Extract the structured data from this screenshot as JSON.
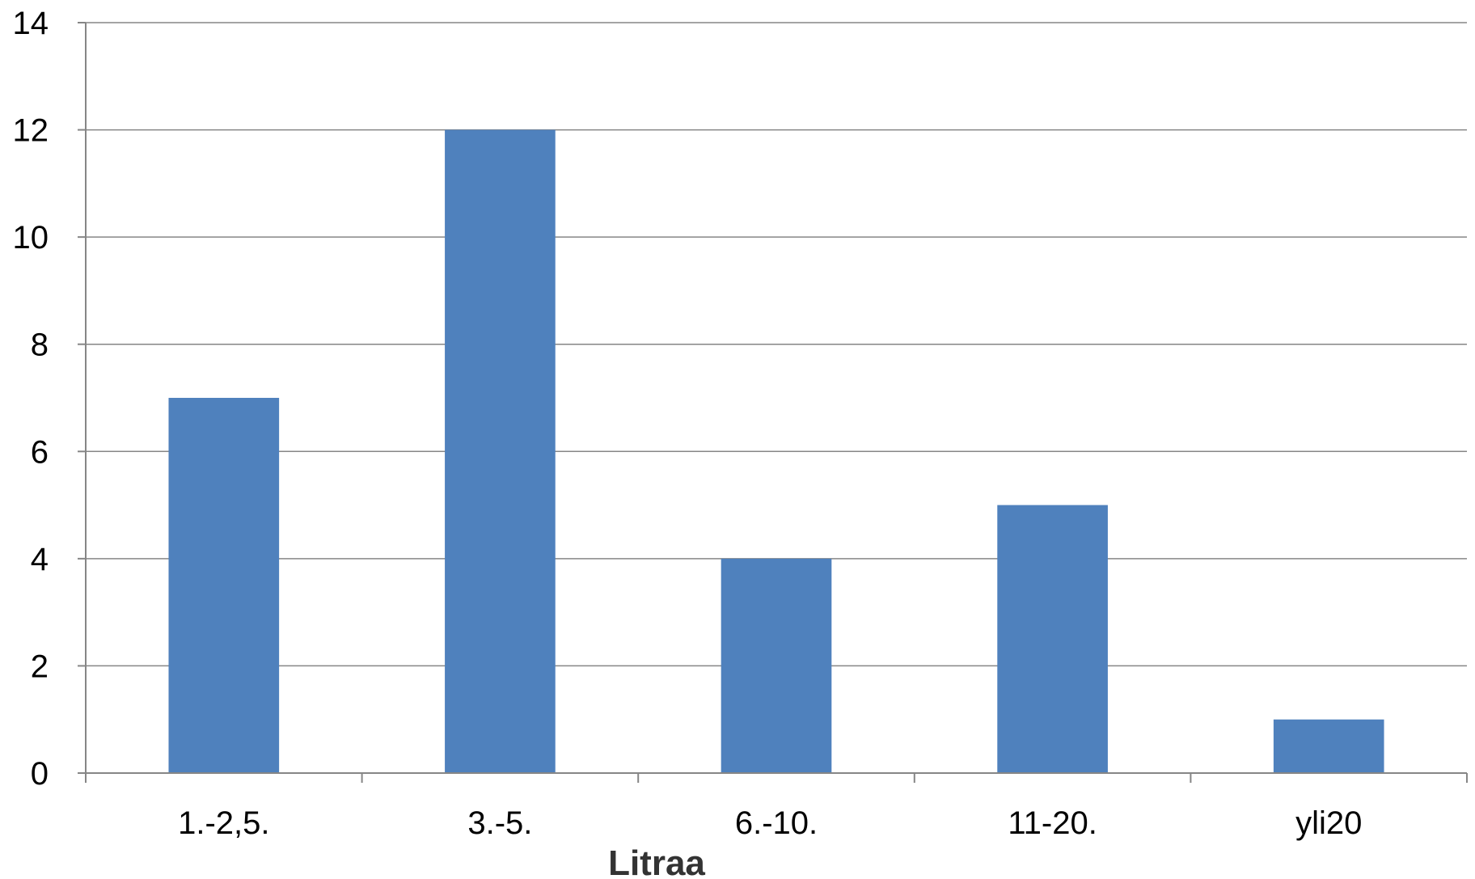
{
  "chart_data": {
    "type": "bar",
    "title": "",
    "xlabel": "Litraa",
    "ylabel": "",
    "categories": [
      "1.-2,5.",
      "3.-5.",
      "6.-10.",
      "11-20.",
      "yli20"
    ],
    "series": [
      {
        "values": [
          7,
          12,
          4,
          5,
          1
        ],
        "color": "#4F81BD"
      }
    ],
    "ylim": [
      0,
      14
    ],
    "yticks": [
      "0",
      "2",
      "4",
      "6",
      "8",
      "10",
      "12",
      "14"
    ],
    "grid": true,
    "legend": "none"
  }
}
